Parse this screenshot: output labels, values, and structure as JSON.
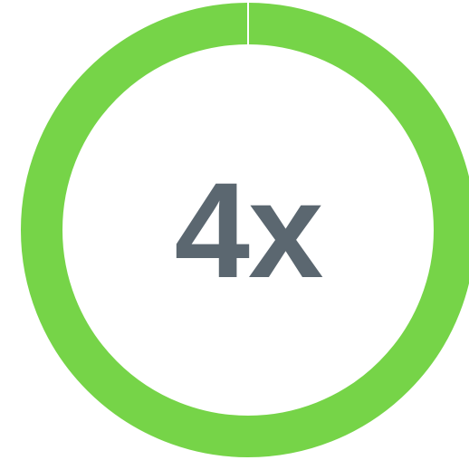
{
  "metric": {
    "value_label": "4x",
    "progress_fraction": 1.0
  },
  "colors": {
    "ring": "#76d448",
    "text": "#5b6770",
    "background": "#ffffff"
  }
}
